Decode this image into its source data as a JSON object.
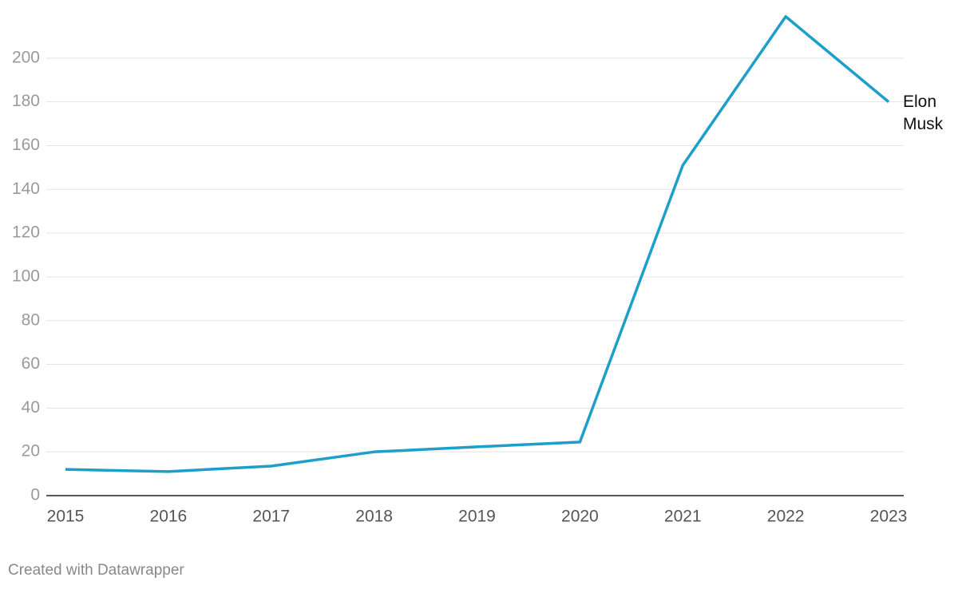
{
  "chart_data": {
    "type": "line",
    "x": [
      2015,
      2016,
      2017,
      2018,
      2019,
      2020,
      2021,
      2022,
      2023
    ],
    "xlim": [
      2015,
      2023
    ],
    "xticks": [
      2015,
      2016,
      2017,
      2018,
      2019,
      2020,
      2021,
      2022,
      2023
    ],
    "series": [
      {
        "name": "Elon Musk",
        "color": "#1d9fc9",
        "values": [
          12,
          11,
          13.5,
          20,
          22.3,
          24.5,
          151,
          219,
          180
        ]
      }
    ],
    "ylim": [
      0,
      220
    ],
    "yticks": [
      0,
      20,
      40,
      60,
      80,
      100,
      120,
      140,
      160,
      180,
      200
    ],
    "grid": true,
    "credit": "Created with Datawrapper"
  }
}
